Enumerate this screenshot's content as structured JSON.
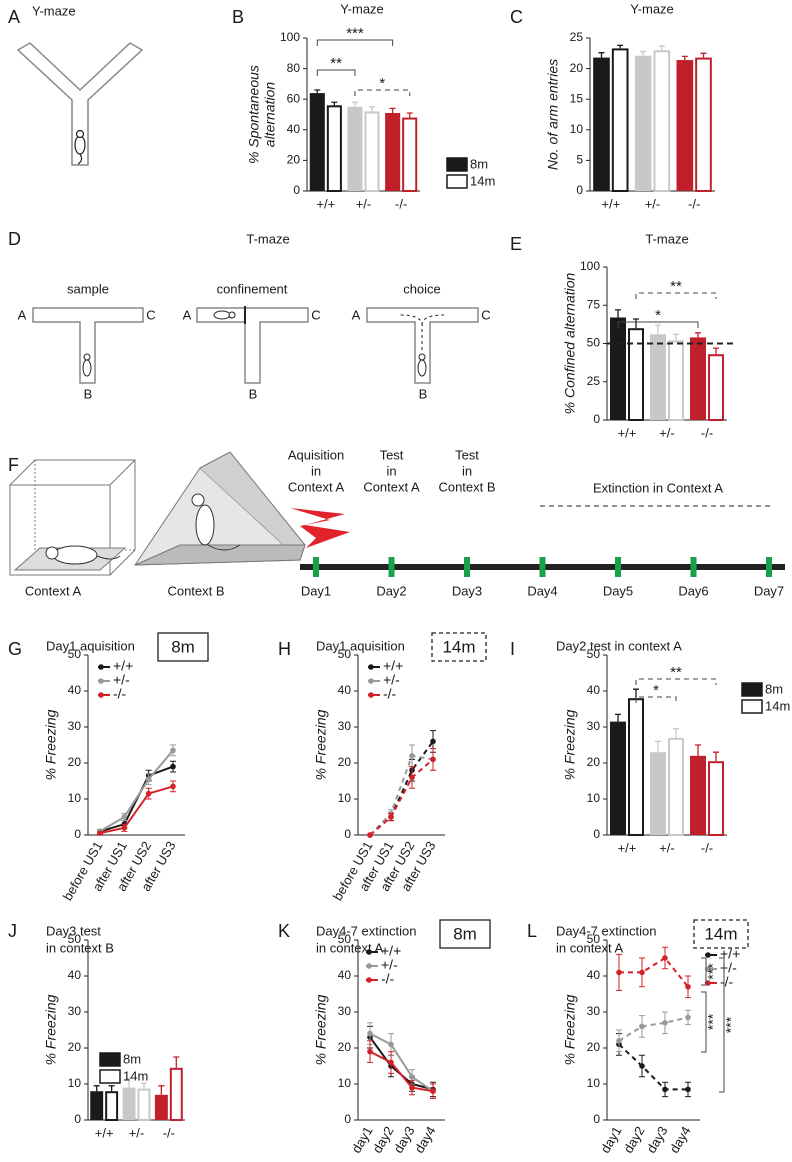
{
  "diagrams": {
    "A": {
      "panel": "A",
      "title": "Y-maze"
    },
    "D": {
      "panel": "D",
      "title": "T-maze",
      "stages": [
        "sample",
        "confinement",
        "choice"
      ],
      "arms": [
        "A",
        "B",
        "C"
      ]
    },
    "F": {
      "panel": "F",
      "contexts": [
        "Context A",
        "Context B"
      ],
      "phases": [
        [
          "Aquisition",
          "in",
          "Context A"
        ],
        [
          "Test",
          "in",
          "Context A"
        ],
        [
          "Test",
          "in",
          "Context B"
        ]
      ],
      "extinction": "Extinction in Context A",
      "days": [
        "Day1",
        "Day2",
        "Day3",
        "Day4",
        "Day5",
        "Day6",
        "Day7"
      ]
    }
  },
  "chart_data": [
    {
      "panel": "B",
      "type": "bar",
      "title": [
        "Y-maze"
      ],
      "y_label": [
        "% Spontaneous",
        "alternation"
      ],
      "categories": [
        "+/+",
        "+/-",
        "-/-"
      ],
      "colors": [
        "#1a1a1a",
        "#c8c8c8",
        "#c0202a"
      ],
      "series": [
        {
          "name": "8m",
          "filled": true,
          "values": [
            64,
            55,
            51
          ],
          "errors": [
            2,
            3,
            3
          ]
        },
        {
          "name": "14m",
          "filled": false,
          "values": [
            56,
            52,
            48
          ],
          "errors": [
            2,
            3,
            3
          ]
        }
      ],
      "ylim": [
        0,
        100
      ],
      "yticks": [
        0,
        20,
        40,
        60,
        80,
        100
      ],
      "annotations": [
        "***",
        "**",
        "*"
      ],
      "legend": true
    },
    {
      "panel": "C",
      "type": "bar",
      "title": [
        "Y-maze"
      ],
      "y_label": [
        "No. of arm entries"
      ],
      "categories": [
        "+/+",
        "+/-",
        "-/-"
      ],
      "colors": [
        "#1a1a1a",
        "#c8c8c8",
        "#c0202a"
      ],
      "series": [
        {
          "name": "8m",
          "filled": true,
          "values": [
            21.8,
            22.1,
            21.4
          ],
          "errors": [
            0.8,
            0.7,
            0.6
          ]
        },
        {
          "name": "14m",
          "filled": false,
          "values": [
            23.3,
            23.0,
            21.8
          ],
          "errors": [
            0.5,
            0.7,
            0.7
          ]
        }
      ],
      "ylim": [
        0,
        25
      ],
      "yticks": [
        0,
        5,
        10,
        15,
        20,
        25
      ],
      "legend": false
    },
    {
      "panel": "E",
      "type": "bar",
      "title": [
        "T-maze"
      ],
      "y_label": [
        "% Confined alternation"
      ],
      "categories": [
        "+/+",
        "+/-",
        "-/-"
      ],
      "colors": [
        "#1a1a1a",
        "#c8c8c8",
        "#c0202a"
      ],
      "series": [
        {
          "name": "8m",
          "filled": true,
          "values": [
            67,
            56,
            54
          ],
          "errors": [
            5,
            6,
            3
          ]
        },
        {
          "name": "14m",
          "filled": false,
          "values": [
            60,
            52,
            43
          ],
          "errors": [
            6,
            4,
            4
          ]
        }
      ],
      "ylim": [
        0,
        100
      ],
      "yticks": [
        0,
        25,
        50,
        75,
        100
      ],
      "reference_line": 50,
      "annotations": [
        "**",
        "*"
      ],
      "legend": false
    },
    {
      "panel": "G",
      "type": "line",
      "title": [
        "Day1 aquisition"
      ],
      "tag": "8m",
      "tag_style": "solid",
      "y_label": [
        "% Freezing"
      ],
      "categories": [
        "before US1",
        "after US1",
        "after US2",
        "after US3"
      ],
      "series": [
        {
          "name": "+/+",
          "color": "#1a1a1a",
          "dashed": false,
          "values": [
            1,
            3,
            16.5,
            19
          ],
          "errors": [
            0.5,
            1,
            1.5,
            1.5
          ]
        },
        {
          "name": "+/-",
          "color": "#999999",
          "dashed": false,
          "values": [
            1,
            5,
            15.5,
            23.5
          ],
          "errors": [
            0.5,
            1,
            1.5,
            1.5
          ]
        },
        {
          "name": "-/-",
          "color": "#d42027",
          "dashed": false,
          "values": [
            0.5,
            2,
            11.5,
            13.5
          ],
          "errors": [
            0.3,
            1,
            1.5,
            1.5
          ]
        }
      ],
      "ylim": [
        0,
        50
      ],
      "yticks": [
        0,
        10,
        20,
        30,
        40,
        50
      ],
      "legend": "upper left"
    },
    {
      "panel": "H",
      "type": "line",
      "title": [
        "Day1 aquisition"
      ],
      "tag": "14m",
      "tag_style": "dashed",
      "y_label": [
        "% Freezing"
      ],
      "categories": [
        "before US1",
        "after US1",
        "after US2",
        "after US3"
      ],
      "series": [
        {
          "name": "+/+",
          "color": "#1a1a1a",
          "dashed": true,
          "values": [
            0,
            5,
            18,
            26
          ],
          "errors": [
            0,
            1,
            3,
            3
          ]
        },
        {
          "name": "+/-",
          "color": "#999999",
          "dashed": true,
          "values": [
            0,
            6,
            22,
            21
          ],
          "errors": [
            0,
            1,
            3,
            3
          ]
        },
        {
          "name": "-/-",
          "color": "#d42027",
          "dashed": true,
          "values": [
            0,
            5,
            16,
            21
          ],
          "errors": [
            0,
            1,
            3,
            3
          ]
        }
      ],
      "ylim": [
        0,
        50
      ],
      "yticks": [
        0,
        10,
        20,
        30,
        40,
        50
      ],
      "legend": "upper left"
    },
    {
      "panel": "I",
      "type": "bar",
      "title": [
        "Day2 test in context A"
      ],
      "y_label": [
        "% Freezing"
      ],
      "categories": [
        "+/+",
        "+/-",
        "-/-"
      ],
      "colors": [
        "#1a1a1a",
        "#c8c8c8",
        "#c0202a"
      ],
      "series": [
        {
          "name": "8m",
          "filled": true,
          "values": [
            31.5,
            23,
            22
          ],
          "errors": [
            2,
            3,
            3
          ]
        },
        {
          "name": "14m",
          "filled": false,
          "values": [
            38,
            27,
            20.5
          ],
          "errors": [
            2.5,
            2.5,
            2.5
          ]
        }
      ],
      "ylim": [
        0,
        50
      ],
      "yticks": [
        0,
        10,
        20,
        30,
        40,
        50
      ],
      "annotations": [
        "**",
        "*"
      ],
      "legend": true
    },
    {
      "panel": "J",
      "type": "bar",
      "title": [
        "Day3 test",
        "in context B"
      ],
      "y_label": [
        "% Freezing"
      ],
      "categories": [
        "+/+",
        "+/-",
        "-/-"
      ],
      "colors": [
        "#1a1a1a",
        "#c8c8c8",
        "#c0202a"
      ],
      "series": [
        {
          "name": "8m",
          "filled": true,
          "values": [
            8,
            9,
            7
          ],
          "errors": [
            1.5,
            2.5,
            2.5
          ]
        },
        {
          "name": "14m",
          "filled": false,
          "values": [
            8,
            8.7,
            14.5
          ],
          "errors": [
            1.5,
            1.5,
            3
          ]
        }
      ],
      "ylim": [
        0,
        50
      ],
      "yticks": [
        0,
        10,
        20,
        30,
        40,
        50
      ],
      "legend": true
    },
    {
      "panel": "K",
      "type": "line",
      "title": [
        "Day4-7 extinction",
        "in context A"
      ],
      "tag": "8m",
      "tag_style": "solid",
      "y_label": [
        "% Freezing"
      ],
      "categories": [
        "day1",
        "day2",
        "day3",
        "day4"
      ],
      "series": [
        {
          "name": "+/+",
          "color": "#1a1a1a",
          "dashed": false,
          "values": [
            23,
            15,
            10,
            8.5
          ],
          "errors": [
            3,
            3,
            2,
            2
          ]
        },
        {
          "name": "+/-",
          "color": "#999999",
          "dashed": false,
          "values": [
            24,
            21,
            12,
            8
          ],
          "errors": [
            3,
            3,
            2,
            2
          ]
        },
        {
          "name": "-/-",
          "color": "#d42027",
          "dashed": false,
          "values": [
            19,
            16,
            9,
            8
          ],
          "errors": [
            3,
            3,
            2,
            2
          ]
        }
      ],
      "ylim": [
        0,
        50
      ],
      "yticks": [
        0,
        10,
        20,
        30,
        40,
        50
      ],
      "legend": "upper left"
    },
    {
      "panel": "L",
      "type": "line",
      "title": [
        "Day4-7 extinction",
        "in context A"
      ],
      "tag": "14m",
      "tag_style": "dashed",
      "y_label": [
        "% Freezing"
      ],
      "categories": [
        "day1",
        "day2",
        "day3",
        "day4"
      ],
      "series": [
        {
          "name": "+/+",
          "color": "#1a1a1a",
          "dashed": true,
          "values": [
            21,
            15,
            8.5,
            8.5
          ],
          "errors": [
            3,
            3,
            2,
            2
          ]
        },
        {
          "name": "+/-",
          "color": "#999999",
          "dashed": true,
          "values": [
            22,
            26,
            27,
            28.5
          ],
          "errors": [
            3,
            3,
            3,
            2
          ]
        },
        {
          "name": "-/-",
          "color": "#d42027",
          "dashed": true,
          "values": [
            41,
            41,
            45,
            37
          ],
          "errors": [
            5,
            4,
            3,
            3
          ]
        }
      ],
      "ylim": [
        0,
        50
      ],
      "yticks": [
        0,
        10,
        20,
        30,
        40,
        50
      ],
      "annotations": [
        "***",
        "***",
        "***"
      ],
      "legend": "right"
    }
  ]
}
